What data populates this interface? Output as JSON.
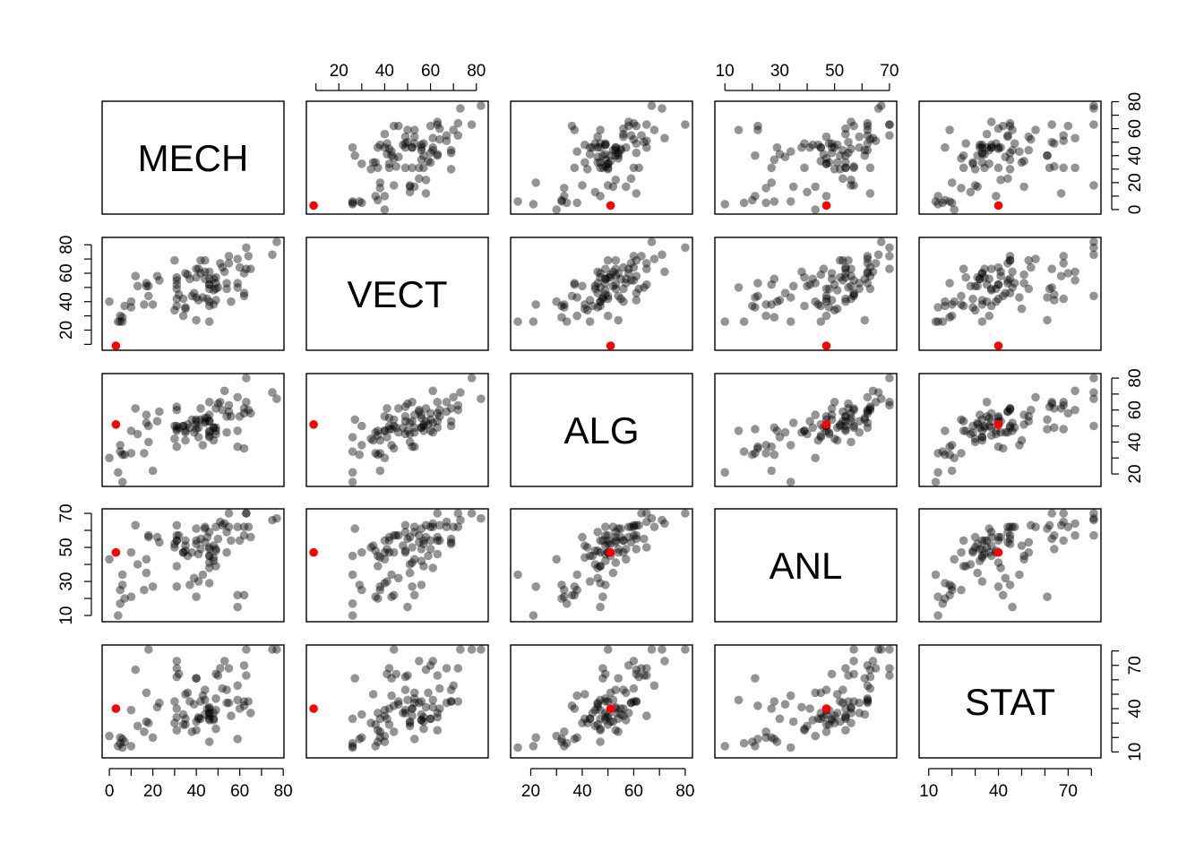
{
  "chart_data": {
    "type": "scatter",
    "kind": "pairs-matrix",
    "title": "",
    "variables": [
      "MECH",
      "VECT",
      "ALG",
      "ANL",
      "STAT"
    ],
    "ranges": [
      [
        0,
        77
      ],
      [
        9,
        82
      ],
      [
        15,
        80
      ],
      [
        9,
        70
      ],
      [
        9,
        81
      ]
    ],
    "ticks": [
      [
        0,
        20,
        40,
        60,
        80
      ],
      [
        20,
        40,
        60,
        80
      ],
      [
        20,
        40,
        60,
        80
      ],
      [
        10,
        30,
        50,
        70
      ],
      [
        10,
        40,
        70
      ]
    ],
    "tick_labels": [
      [
        "0",
        "20",
        "40",
        "60",
        "80"
      ],
      [
        "20",
        "40",
        "60",
        "80"
      ],
      [
        "20",
        "40",
        "60",
        "80"
      ],
      [
        "10",
        "30",
        "50",
        "70"
      ],
      [
        "10",
        "40",
        "70"
      ]
    ],
    "minor_ticks": [
      [
        0,
        10,
        20,
        30,
        40,
        50,
        60,
        70,
        80
      ],
      [
        10,
        20,
        30,
        40,
        50,
        60,
        70,
        80
      ],
      [
        20,
        30,
        40,
        50,
        60,
        70,
        80
      ],
      [
        10,
        20,
        30,
        40,
        50,
        60,
        70
      ],
      [
        10,
        20,
        30,
        40,
        50,
        60,
        70,
        80
      ]
    ],
    "point_color": "#000000",
    "point_opacity": 0.42,
    "highlight_color": "#ff0000",
    "highlight": [
      3,
      9,
      51,
      47,
      40
    ],
    "points": [
      [
        77,
        82,
        67,
        67,
        81
      ],
      [
        63,
        78,
        80,
        70,
        81
      ],
      [
        75,
        73,
        71,
        66,
        81
      ],
      [
        55,
        72,
        63,
        70,
        68
      ],
      [
        63,
        63,
        65,
        70,
        63
      ],
      [
        53,
        61,
        72,
        64,
        73
      ],
      [
        51,
        67,
        65,
        65,
        68
      ],
      [
        59,
        70,
        68,
        62,
        56
      ],
      [
        62,
        60,
        58,
        62,
        70
      ],
      [
        64,
        72,
        60,
        62,
        45
      ],
      [
        52,
        64,
        60,
        63,
        54
      ],
      [
        55,
        67,
        59,
        62,
        44
      ],
      [
        50,
        50,
        64,
        55,
        63
      ],
      [
        65,
        63,
        58,
        56,
        37
      ],
      [
        31,
        55,
        60,
        57,
        73
      ],
      [
        60,
        64,
        56,
        54,
        40
      ],
      [
        44,
        69,
        53,
        53,
        53
      ],
      [
        42,
        69,
        61,
        55,
        45
      ],
      [
        62,
        46,
        61,
        57,
        45
      ],
      [
        31,
        49,
        62,
        63,
        62
      ],
      [
        44,
        61,
        52,
        62,
        46
      ],
      [
        49,
        41,
        61,
        49,
        64
      ],
      [
        12,
        58,
        61,
        63,
        67
      ],
      [
        49,
        53,
        49,
        62,
        47
      ],
      [
        54,
        49,
        56,
        47,
        53
      ],
      [
        54,
        53,
        46,
        59,
        44
      ],
      [
        44,
        56,
        55,
        61,
        36
      ],
      [
        18,
        44,
        50,
        57,
        81
      ],
      [
        46,
        52,
        65,
        50,
        35
      ],
      [
        32,
        45,
        49,
        57,
        64
      ],
      [
        30,
        69,
        50,
        52,
        45
      ],
      [
        46,
        49,
        53,
        59,
        37
      ],
      [
        40,
        27,
        54,
        61,
        61
      ],
      [
        31,
        42,
        48,
        54,
        68
      ],
      [
        36,
        59,
        51,
        45,
        51
      ],
      [
        56,
        40,
        56,
        54,
        35
      ],
      [
        46,
        56,
        57,
        49,
        32
      ],
      [
        45,
        42,
        55,
        56,
        40
      ],
      [
        42,
        60,
        54,
        49,
        33
      ],
      [
        40,
        63,
        53,
        54,
        25
      ],
      [
        23,
        55,
        59,
        53,
        44
      ],
      [
        48,
        48,
        49,
        51,
        37
      ],
      [
        41,
        63,
        49,
        46,
        34
      ],
      [
        46,
        52,
        53,
        41,
        40
      ],
      [
        46,
        61,
        46,
        38,
        41
      ],
      [
        40,
        57,
        51,
        52,
        31
      ],
      [
        49,
        49,
        45,
        48,
        39
      ],
      [
        22,
        58,
        53,
        56,
        41
      ],
      [
        35,
        60,
        47,
        54,
        33
      ],
      [
        48,
        56,
        49,
        42,
        32
      ],
      [
        31,
        57,
        50,
        54,
        34
      ],
      [
        17,
        53,
        57,
        43,
        51
      ],
      [
        49,
        57,
        47,
        39,
        26
      ],
      [
        59,
        50,
        47,
        15,
        46
      ],
      [
        37,
        56,
        49,
        28,
        45
      ],
      [
        40,
        43,
        48,
        21,
        61
      ],
      [
        35,
        35,
        41,
        51,
        50
      ],
      [
        38,
        44,
        54,
        47,
        24
      ],
      [
        43,
        43,
        38,
        34,
        49
      ],
      [
        39,
        46,
        46,
        32,
        43
      ],
      [
        62,
        44,
        36,
        22,
        42
      ],
      [
        48,
        38,
        41,
        44,
        33
      ],
      [
        34,
        42,
        50,
        47,
        29
      ],
      [
        18,
        51,
        40,
        56,
        30
      ],
      [
        35,
        36,
        46,
        48,
        29
      ],
      [
        59,
        53,
        37,
        22,
        19
      ],
      [
        41,
        41,
        43,
        30,
        33
      ],
      [
        31,
        52,
        37,
        27,
        40
      ],
      [
        17,
        51,
        52,
        35,
        31
      ],
      [
        34,
        30,
        50,
        47,
        36
      ],
      [
        46,
        40,
        47,
        29,
        17
      ],
      [
        10,
        40,
        47,
        47,
        39
      ],
      [
        46,
        37,
        44,
        45,
        37
      ],
      [
        30,
        34,
        42,
        50,
        30
      ],
      [
        13,
        51,
        45,
        40,
        28
      ],
      [
        46,
        26,
        43,
        45,
        33
      ],
      [
        31,
        37,
        47,
        39,
        25
      ],
      [
        5,
        30,
        38,
        25,
        20
      ],
      [
        0,
        40,
        30,
        43,
        21
      ],
      [
        16,
        38,
        33,
        25,
        24
      ],
      [
        20,
        38,
        22,
        27,
        20
      ],
      [
        5,
        26,
        34,
        17,
        16
      ],
      [
        7,
        37,
        32,
        20,
        17
      ],
      [
        6,
        29,
        32,
        28,
        19
      ],
      [
        6,
        26,
        15,
        34,
        13
      ],
      [
        10,
        36,
        33,
        21,
        14
      ],
      [
        4,
        26,
        21,
        10,
        14
      ]
    ]
  }
}
